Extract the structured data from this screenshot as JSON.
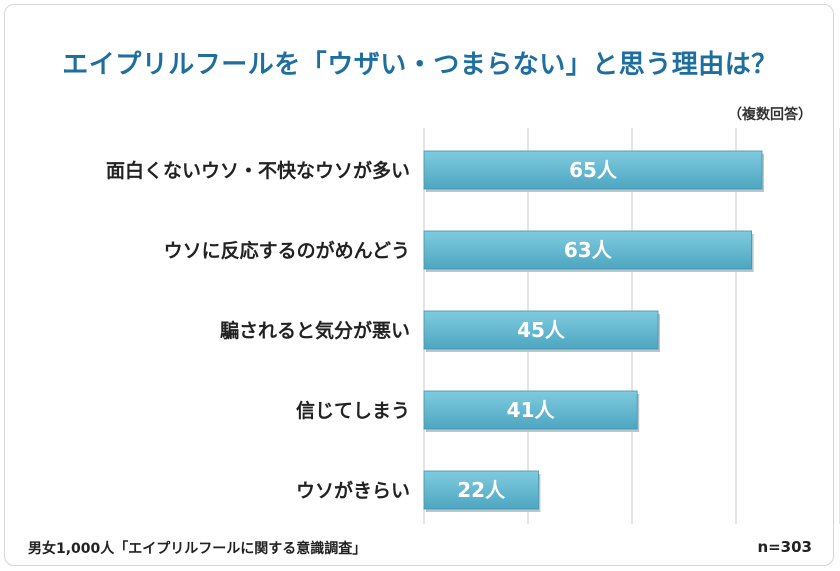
{
  "title": "エイプリルフールを「ウザい・つまらない」と思う理由は？",
  "note": "（複数回答）",
  "footer": {
    "source": "男女1,000人「エイプリルフールに関する意識調査」",
    "n": "n=303"
  },
  "colors": {
    "bar": "#5fb7cf",
    "bar_dark": "#3e95ad",
    "title": "#1f6ea0",
    "grid": "#c8c8c8"
  },
  "chart_data": {
    "type": "bar",
    "orientation": "horizontal",
    "categories": [
      "面白くないウソ・不快なウソが多い",
      "ウソに反応するのがめんどう",
      "騙されると気分が悪い",
      "信じてしまう",
      "ウソがきらい"
    ],
    "values": [
      65,
      63,
      45,
      41,
      22
    ],
    "value_labels": [
      "65人",
      "63人",
      "45人",
      "41人",
      "22人"
    ],
    "xlim": [
      0,
      80
    ],
    "grid": true
  }
}
